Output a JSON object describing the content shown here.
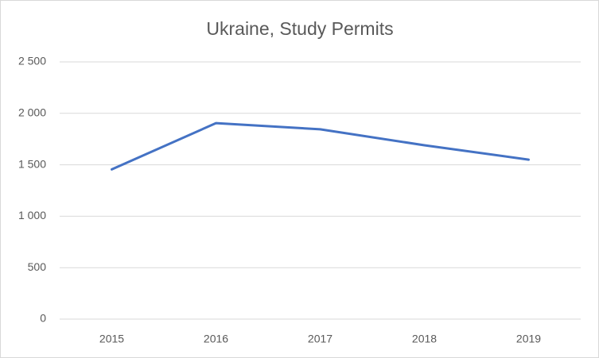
{
  "chart_data": {
    "type": "line",
    "title": "Ukraine, Study Permits",
    "categories": [
      "2015",
      "2016",
      "2017",
      "2018",
      "2019"
    ],
    "series": [
      {
        "name": "Ukraine",
        "color": "#4472c4",
        "values": [
          1455,
          1905,
          1845,
          1690,
          1550
        ]
      }
    ],
    "ylim": [
      0,
      2500
    ],
    "yticks": [
      0,
      500,
      {
        "value": 1000,
        "label": "1 000"
      },
      {
        "value": 1500,
        "label": "1 500"
      },
      {
        "value": 2000,
        "label": "2 000"
      },
      {
        "value": 2500,
        "label": "2 500"
      }
    ],
    "grid": true
  }
}
